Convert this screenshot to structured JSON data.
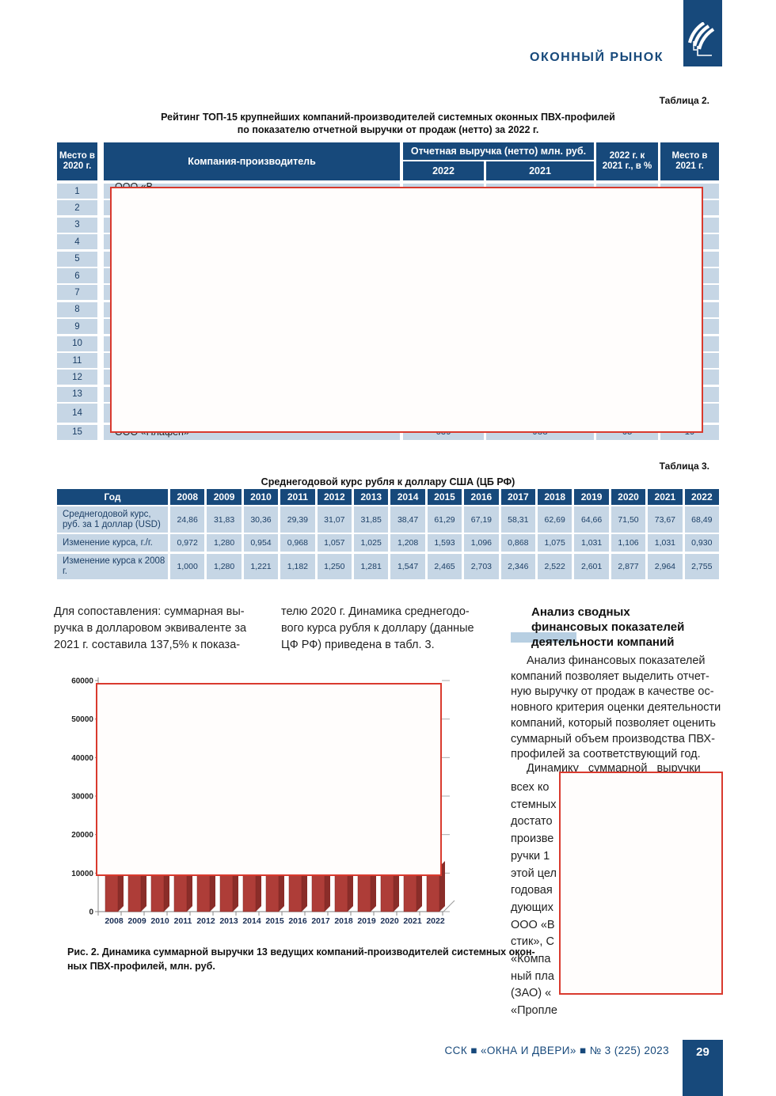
{
  "page": {
    "header_title": "ОКОННЫЙ РЫНОК",
    "footer_text": "ССК ■ «ОКНА И ДВЕРИ» ■ № 3 (225) 2023",
    "page_number": "29"
  },
  "colors": {
    "navy": "#17497b",
    "light_cell": "#c6d6e5",
    "red_overlay_border": "#d93a2e",
    "bar_front": "#ae3d38",
    "bar_side": "#8a2d29",
    "heading_highlight": "#b7cfe2"
  },
  "table2": {
    "label": "Таблица 2.",
    "title_lines": [
      "Рейтинг ТОП-15 крупнейших компаний-производителей системных оконных ПВХ-профилей",
      "по показателю отчетной выручки от продаж (нетто) за 2022 г."
    ],
    "header": {
      "place2020": "Место в 2020 г.",
      "company": "Компания-производитель",
      "revenue_group": "Отчетная выручка (нетто) млн. руб.",
      "y2022": "2022",
      "y2021": "2021",
      "ratio": "2022 г. к 2021 г., в %",
      "place2021": "Место в 2021 г."
    },
    "rows": [
      {
        "place": "1",
        "company_visible": "ООО «В"
      },
      {
        "place": "2"
      },
      {
        "place": "3"
      },
      {
        "place": "4"
      },
      {
        "place": "5"
      },
      {
        "place": "6"
      },
      {
        "place": "7"
      },
      {
        "place": "8"
      },
      {
        "place": "9"
      },
      {
        "place": "10"
      },
      {
        "place": "11"
      },
      {
        "place": "12"
      },
      {
        "place": "13"
      },
      {
        "place": "14"
      },
      {
        "place": "15",
        "company_visible": "ООО «Плафен»",
        "v2022": "639",
        "v2021": "988",
        "ratio": "65",
        "place2021": "19"
      }
    ]
  },
  "table3": {
    "label": "Таблица 3.",
    "title": "Среднегодовой курс рубля к доллару США (ЦБ РФ)",
    "year_header": "Год",
    "years": [
      "2008",
      "2009",
      "2010",
      "2011",
      "2012",
      "2013",
      "2014",
      "2015",
      "2016",
      "2017",
      "2018",
      "2019",
      "2020",
      "2021",
      "2022"
    ],
    "rows": [
      {
        "label": "Среднегодовой курс, руб. за 1 доллар (USD)",
        "values": [
          "24,86",
          "31,83",
          "30,36",
          "29,39",
          "31,07",
          "31,85",
          "38,47",
          "61,29",
          "67,19",
          "58,31",
          "62,69",
          "64,66",
          "71,50",
          "73,67",
          "68,49"
        ]
      },
      {
        "label": "Изменение курса, г./г.",
        "values": [
          "0,972",
          "1,280",
          "0,954",
          "0,968",
          "1,057",
          "1,025",
          "1,208",
          "1,593",
          "1,096",
          "0,868",
          "1,075",
          "1,031",
          "1,106",
          "1,031",
          "0,930"
        ]
      },
      {
        "label": "Изменение курса к 2008 г.",
        "values": [
          "1,000",
          "1,280",
          "1,221",
          "1,182",
          "1,250",
          "1,281",
          "1,547",
          "2,465",
          "2,703",
          "2,346",
          "2,522",
          "2,601",
          "2,877",
          "2,964",
          "2,755"
        ]
      }
    ]
  },
  "body_text": {
    "col1_lines": [
      "Для сопоставления: суммарная вы-",
      "ручка в долларовом эквиваленте за",
      "2021 г. составила 137,5% к показа-"
    ],
    "col2_lines": [
      "телю 2020 г. Динамика среднегодо-",
      "вого курса рубля к доллару (данные",
      "ЦФ РФ) приведена в табл. 3."
    ],
    "col3_heading_lines": [
      "Анализ сводных",
      "финансовых показателей",
      "деятельности компаний"
    ],
    "col3_para1_lines": [
      "Анализ финансовых показателей",
      "компаний позволяет выделить отчет-",
      "ную выручку от продаж в качестве ос-",
      "новного критерия оценки деятельности",
      "компаний, который позволяет оценить",
      "суммарный объем производства ПВХ-",
      "профилей за соответствующий год."
    ],
    "col3_para2_first_line": "Динамику суммарной выручки",
    "col3_para2_fragments": [
      "всех ко",
      "стемных",
      "достато",
      "произве",
      "ручки 1",
      "этой цел",
      "годовая",
      "дующих",
      "ООО «В",
      "стик», С",
      "«Компа",
      "ный пла",
      "(ЗАО) «",
      "«Пропле"
    ]
  },
  "figure": {
    "caption_lines": [
      "Рис. 2. Динамика суммарной выручки 13 ведущих компаний-производителей системных окон-",
      "ных ПВХ-профилей, млн. руб."
    ]
  },
  "chart_data": {
    "type": "bar",
    "title": "Динамика суммарной выручки 13 ведущих компаний-производителей системных оконных ПВХ-профилей, млн. руб.",
    "categories": [
      "2008",
      "2009",
      "2010",
      "2011",
      "2012",
      "2013",
      "2014",
      "2015",
      "2016",
      "2017",
      "2018",
      "2019",
      "2020",
      "2021",
      "2022"
    ],
    "values": null,
    "values_obscured_by_overlay": true,
    "visible_value_cutoff": 9500,
    "xlabel": "",
    "ylabel": "",
    "ylim": [
      0,
      60000
    ],
    "yticks": [
      0,
      10000,
      20000,
      30000,
      40000,
      50000,
      60000
    ],
    "grid": false,
    "legend": "none",
    "bar_color": "#ae3d38"
  },
  "overlays": {
    "table2_overlay": "red-bordered blank box",
    "chart_overlay": "red-bordered blank box",
    "text_overlay": "red-bordered blank box"
  }
}
